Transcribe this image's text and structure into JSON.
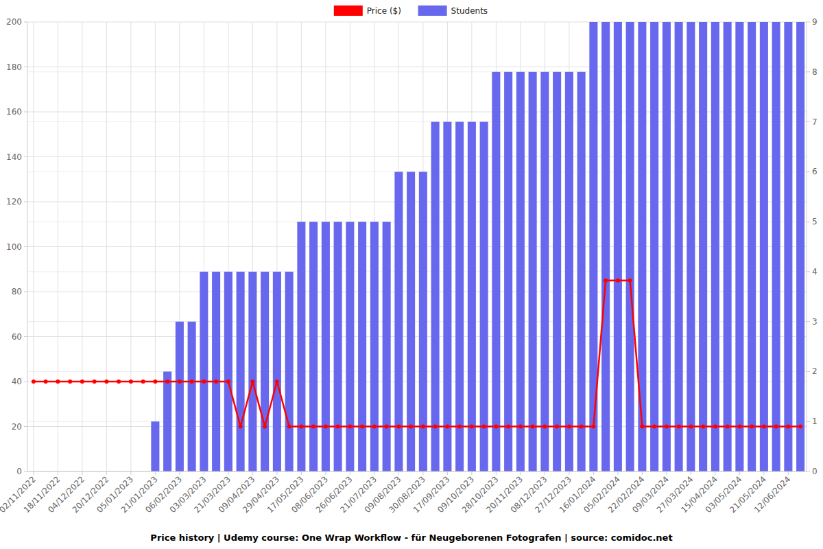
{
  "chart_data": {
    "type": "bar",
    "title": "Price history | Udemy course: One Wrap Workflow - für Neugeborenen Fotografen | source: comidoc.net",
    "categories": [
      "02/11/2022",
      null,
      "18/11/2022",
      null,
      "04/12/2022",
      null,
      "20/12/2022",
      null,
      "05/01/2023",
      null,
      "21/01/2023",
      null,
      "06/02/2023",
      null,
      "03/03/2023",
      null,
      "21/03/2023",
      null,
      "09/04/2023",
      null,
      "29/04/2023",
      null,
      "17/05/2023",
      null,
      "08/06/2023",
      null,
      "26/06/2023",
      null,
      "21/07/2023",
      null,
      "09/08/2023",
      null,
      "30/08/2023",
      null,
      "17/09/2023",
      null,
      "09/10/2023",
      null,
      "28/10/2023",
      null,
      "20/11/2023",
      null,
      "08/12/2023",
      null,
      "27/12/2023",
      null,
      "16/01/2024",
      null,
      "05/02/2024",
      null,
      "22/02/2024",
      null,
      "09/03/2024",
      null,
      "27/03/2024",
      null,
      "15/04/2024",
      null,
      "03/05/2024",
      null,
      "21/05/2024",
      null,
      "12/06/2024",
      null
    ],
    "series": [
      {
        "name": "Price ($)",
        "type": "line",
        "color": "#ff0000",
        "marker": "circle",
        "values": [
          40,
          40,
          40,
          40,
          40,
          40,
          40,
          40,
          40,
          40,
          40,
          40,
          40,
          40,
          40,
          40,
          40,
          20,
          40,
          20,
          40,
          20,
          20,
          20,
          20,
          20,
          20,
          20,
          20,
          20,
          20,
          20,
          20,
          20,
          20,
          20,
          20,
          20,
          20,
          20,
          20,
          20,
          20,
          20,
          20,
          20,
          20,
          85,
          85,
          85,
          20,
          20,
          20,
          20,
          20,
          20,
          20,
          20,
          20,
          20,
          20,
          20,
          20,
          20
        ]
      },
      {
        "name": "Students",
        "type": "bar",
        "color": "#6868ee",
        "axis": "y2",
        "values": [
          null,
          null,
          null,
          null,
          null,
          null,
          null,
          null,
          null,
          null,
          1,
          2,
          3,
          3,
          4,
          4,
          4,
          4,
          4,
          4,
          4,
          4,
          5,
          5,
          5,
          5,
          5,
          5,
          5,
          5,
          6,
          6,
          6,
          7,
          7,
          7,
          7,
          7,
          8,
          8,
          8,
          8,
          8,
          8,
          8,
          8,
          9,
          9,
          9,
          9,
          9,
          9,
          9,
          9,
          9,
          9,
          9,
          9,
          9,
          9,
          9,
          9,
          9,
          9
        ]
      }
    ],
    "ylim": [
      0,
      200
    ],
    "yticks": [
      0,
      20,
      40,
      60,
      80,
      100,
      120,
      140,
      160,
      180,
      200
    ],
    "y2lim": [
      0,
      9
    ],
    "y2ticks": [
      0,
      1,
      2,
      3,
      4,
      5,
      6,
      7,
      8,
      9
    ],
    "grid": true,
    "legend": "top"
  }
}
